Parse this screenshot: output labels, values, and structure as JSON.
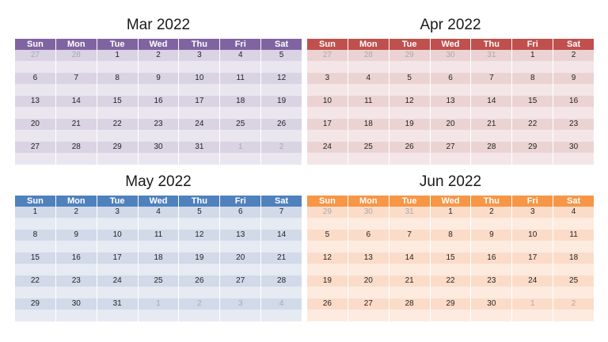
{
  "weekdays": [
    "Sun",
    "Mon",
    "Tue",
    "Wed",
    "Thu",
    "Fri",
    "Sat"
  ],
  "calendars": [
    {
      "title": "Mar 2022",
      "colors": {
        "header": "#8064a2",
        "num_bg": "#d9d3e3",
        "blank_bg": "#eae6ef"
      },
      "weeks": [
        [
          {
            "d": "27",
            "m": true
          },
          {
            "d": "28",
            "m": true
          },
          {
            "d": "1"
          },
          {
            "d": "2"
          },
          {
            "d": "3"
          },
          {
            "d": "4"
          },
          {
            "d": "5"
          }
        ],
        [
          {
            "d": "6"
          },
          {
            "d": "7"
          },
          {
            "d": "8"
          },
          {
            "d": "9"
          },
          {
            "d": "10"
          },
          {
            "d": "11"
          },
          {
            "d": "12"
          }
        ],
        [
          {
            "d": "13"
          },
          {
            "d": "14"
          },
          {
            "d": "15"
          },
          {
            "d": "16"
          },
          {
            "d": "17"
          },
          {
            "d": "18"
          },
          {
            "d": "19"
          }
        ],
        [
          {
            "d": "20"
          },
          {
            "d": "21"
          },
          {
            "d": "22"
          },
          {
            "d": "23"
          },
          {
            "d": "24"
          },
          {
            "d": "25"
          },
          {
            "d": "26"
          }
        ],
        [
          {
            "d": "27"
          },
          {
            "d": "28"
          },
          {
            "d": "29"
          },
          {
            "d": "30"
          },
          {
            "d": "31"
          },
          {
            "d": "1",
            "m": true
          },
          {
            "d": "2",
            "m": true
          }
        ]
      ]
    },
    {
      "title": "Apr 2022",
      "colors": {
        "header": "#c0504d",
        "num_bg": "#ebd3d3",
        "blank_bg": "#f4e6e6"
      },
      "weeks": [
        [
          {
            "d": "27",
            "m": true
          },
          {
            "d": "28",
            "m": true
          },
          {
            "d": "29",
            "m": true
          },
          {
            "d": "30",
            "m": true
          },
          {
            "d": "31",
            "m": true
          },
          {
            "d": "1"
          },
          {
            "d": "2"
          }
        ],
        [
          {
            "d": "3"
          },
          {
            "d": "4"
          },
          {
            "d": "5"
          },
          {
            "d": "6"
          },
          {
            "d": "7"
          },
          {
            "d": "8"
          },
          {
            "d": "9"
          }
        ],
        [
          {
            "d": "10"
          },
          {
            "d": "11"
          },
          {
            "d": "12"
          },
          {
            "d": "13"
          },
          {
            "d": "14"
          },
          {
            "d": "15"
          },
          {
            "d": "16"
          }
        ],
        [
          {
            "d": "17"
          },
          {
            "d": "18"
          },
          {
            "d": "19"
          },
          {
            "d": "20"
          },
          {
            "d": "21"
          },
          {
            "d": "22"
          },
          {
            "d": "23"
          }
        ],
        [
          {
            "d": "24"
          },
          {
            "d": "25"
          },
          {
            "d": "26"
          },
          {
            "d": "27"
          },
          {
            "d": "28"
          },
          {
            "d": "29"
          },
          {
            "d": "30"
          }
        ]
      ]
    },
    {
      "title": "May 2022",
      "colors": {
        "header": "#4f81bd",
        "num_bg": "#d2d9e8",
        "blank_bg": "#e6eaf2"
      },
      "weeks": [
        [
          {
            "d": "1"
          },
          {
            "d": "2"
          },
          {
            "d": "3"
          },
          {
            "d": "4"
          },
          {
            "d": "5"
          },
          {
            "d": "6"
          },
          {
            "d": "7"
          }
        ],
        [
          {
            "d": "8"
          },
          {
            "d": "9"
          },
          {
            "d": "10"
          },
          {
            "d": "11"
          },
          {
            "d": "12"
          },
          {
            "d": "13"
          },
          {
            "d": "14"
          }
        ],
        [
          {
            "d": "15"
          },
          {
            "d": "16"
          },
          {
            "d": "17"
          },
          {
            "d": "18"
          },
          {
            "d": "19"
          },
          {
            "d": "20"
          },
          {
            "d": "21"
          }
        ],
        [
          {
            "d": "22"
          },
          {
            "d": "23"
          },
          {
            "d": "24"
          },
          {
            "d": "25"
          },
          {
            "d": "26"
          },
          {
            "d": "27"
          },
          {
            "d": "28"
          }
        ],
        [
          {
            "d": "29"
          },
          {
            "d": "30"
          },
          {
            "d": "31"
          },
          {
            "d": "1",
            "m": true
          },
          {
            "d": "2",
            "m": true
          },
          {
            "d": "3",
            "m": true
          },
          {
            "d": "4",
            "m": true
          }
        ]
      ]
    },
    {
      "title": "Jun 2022",
      "colors": {
        "header": "#f79646",
        "num_bg": "#fbdcc9",
        "blank_bg": "#fdebe0"
      },
      "weeks": [
        [
          {
            "d": "29",
            "m": true
          },
          {
            "d": "30",
            "m": true
          },
          {
            "d": "31",
            "m": true
          },
          {
            "d": "1"
          },
          {
            "d": "2"
          },
          {
            "d": "3"
          },
          {
            "d": "4"
          }
        ],
        [
          {
            "d": "5"
          },
          {
            "d": "6"
          },
          {
            "d": "7"
          },
          {
            "d": "8"
          },
          {
            "d": "9"
          },
          {
            "d": "10"
          },
          {
            "d": "11"
          }
        ],
        [
          {
            "d": "12"
          },
          {
            "d": "13"
          },
          {
            "d": "14"
          },
          {
            "d": "15"
          },
          {
            "d": "16"
          },
          {
            "d": "17"
          },
          {
            "d": "18"
          }
        ],
        [
          {
            "d": "19"
          },
          {
            "d": "20"
          },
          {
            "d": "21"
          },
          {
            "d": "22"
          },
          {
            "d": "23"
          },
          {
            "d": "24"
          },
          {
            "d": "25"
          }
        ],
        [
          {
            "d": "26"
          },
          {
            "d": "27"
          },
          {
            "d": "28"
          },
          {
            "d": "29"
          },
          {
            "d": "30"
          },
          {
            "d": "1",
            "m": true
          },
          {
            "d": "2",
            "m": true
          }
        ]
      ]
    }
  ]
}
